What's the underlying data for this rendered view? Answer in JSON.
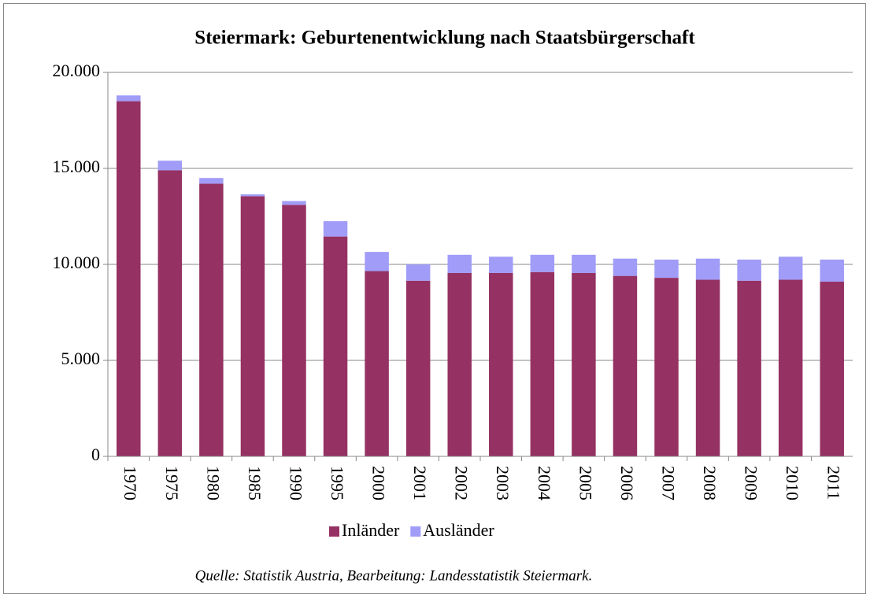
{
  "chart_data": {
    "type": "bar",
    "stacked": true,
    "title": "Steiermark: Geburtenentwicklung  nach Staatsbürgerschaft",
    "source": "Quelle: Statistik Austria, Bearbeitung: Landesstatistik Steiermark.",
    "categories": [
      "1970",
      "1975",
      "1980",
      "1985",
      "1990",
      "1995",
      "2000",
      "2001",
      "2002",
      "2003",
      "2004",
      "2005",
      "2006",
      "2007",
      "2008",
      "2009",
      "2010",
      "2011"
    ],
    "series": [
      {
        "name": "Inländer",
        "color": "#953163",
        "values": [
          18500,
          14900,
          14200,
          13550,
          13100,
          11450,
          9650,
          9150,
          9550,
          9550,
          9600,
          9550,
          9400,
          9300,
          9200,
          9150,
          9200,
          9100
        ]
      },
      {
        "name": "Ausländer",
        "color": "#a09cf7",
        "values": [
          300,
          500,
          300,
          100,
          200,
          800,
          1000,
          850,
          950,
          850,
          900,
          950,
          900,
          950,
          1100,
          1100,
          1200,
          1150
        ]
      }
    ],
    "ylim": [
      0,
      20000
    ],
    "yticks": [
      0,
      {
        "value": 5000,
        "label": "5.000"
      },
      {
        "value": 10000,
        "label": "10.000"
      },
      {
        "value": 15000,
        "label": "15.000"
      },
      {
        "value": 20000,
        "label": "20.000"
      }
    ],
    "grid": true,
    "legend": "bottom"
  }
}
